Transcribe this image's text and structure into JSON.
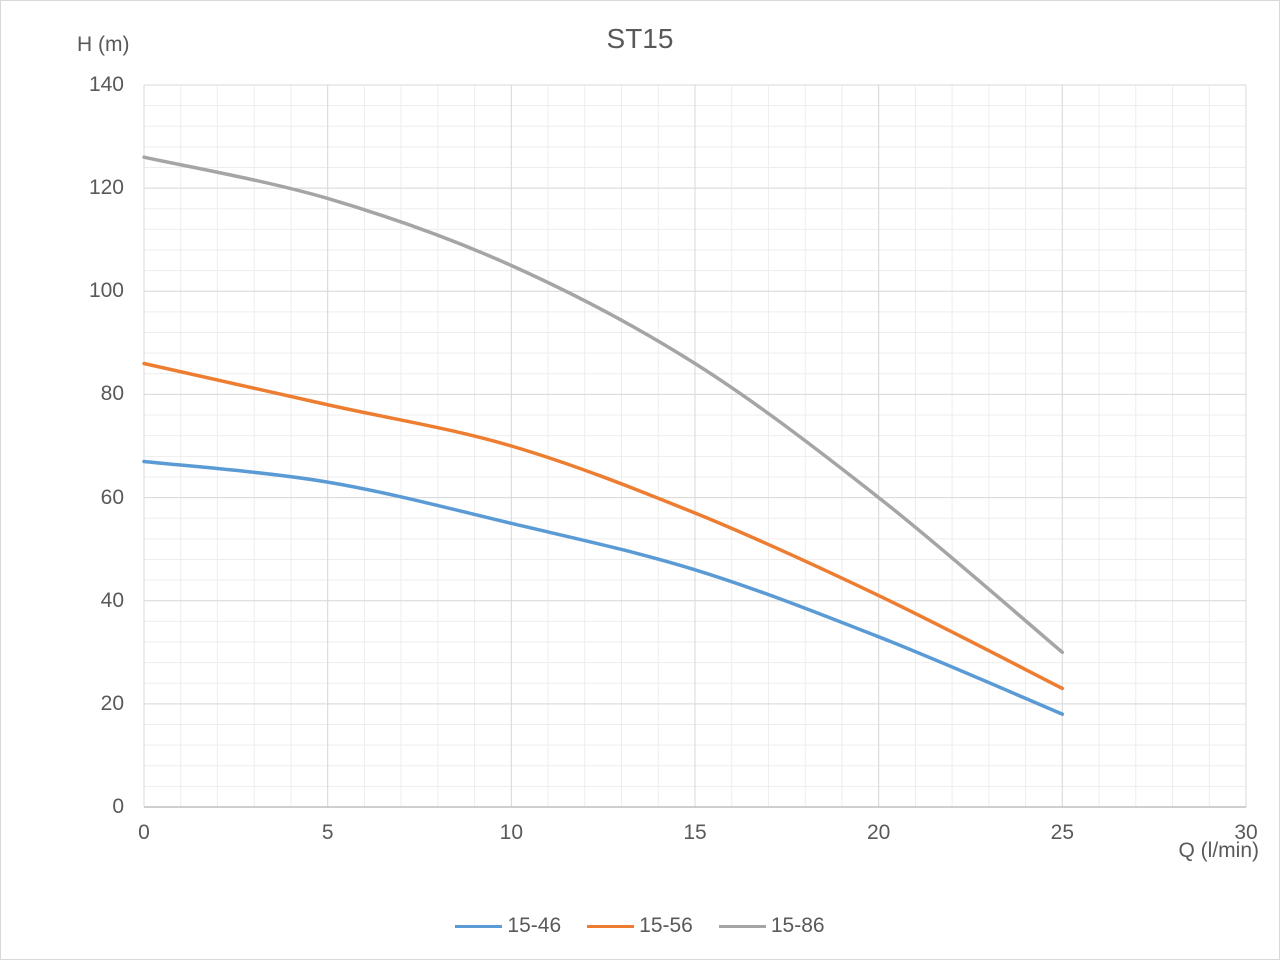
{
  "chart_data": {
    "type": "line",
    "title": "ST15",
    "ylabel": "H (m)",
    "xlabel": "Q (l/min)",
    "x": [
      0,
      5,
      10,
      15,
      20,
      25
    ],
    "series": [
      {
        "name": "15-46",
        "color": "#5B9BD5",
        "values": [
          67,
          63,
          55,
          46,
          33,
          18
        ]
      },
      {
        "name": "15-56",
        "color": "#ED7D31",
        "values": [
          86,
          78,
          70,
          57,
          41,
          23
        ]
      },
      {
        "name": "15-86",
        "color": "#A5A5A5",
        "values": [
          126,
          118,
          105,
          86,
          60,
          30
        ]
      }
    ],
    "xlim": [
      0,
      30
    ],
    "ylim": [
      0,
      140
    ],
    "xticks": [
      0,
      5,
      10,
      15,
      20,
      25,
      30
    ],
    "yticks": [
      0,
      20,
      40,
      60,
      80,
      100,
      120,
      140
    ],
    "x_minor_step": 1,
    "y_minor_step": 4,
    "grid": {
      "on": true,
      "major_color": "#D9D9D9",
      "minor_color": "#EDEDED",
      "axis_color": "#BFBFBF"
    },
    "smooth": true,
    "line_width": 3.5,
    "legend_position": "bottom",
    "text_color": "#595959"
  }
}
